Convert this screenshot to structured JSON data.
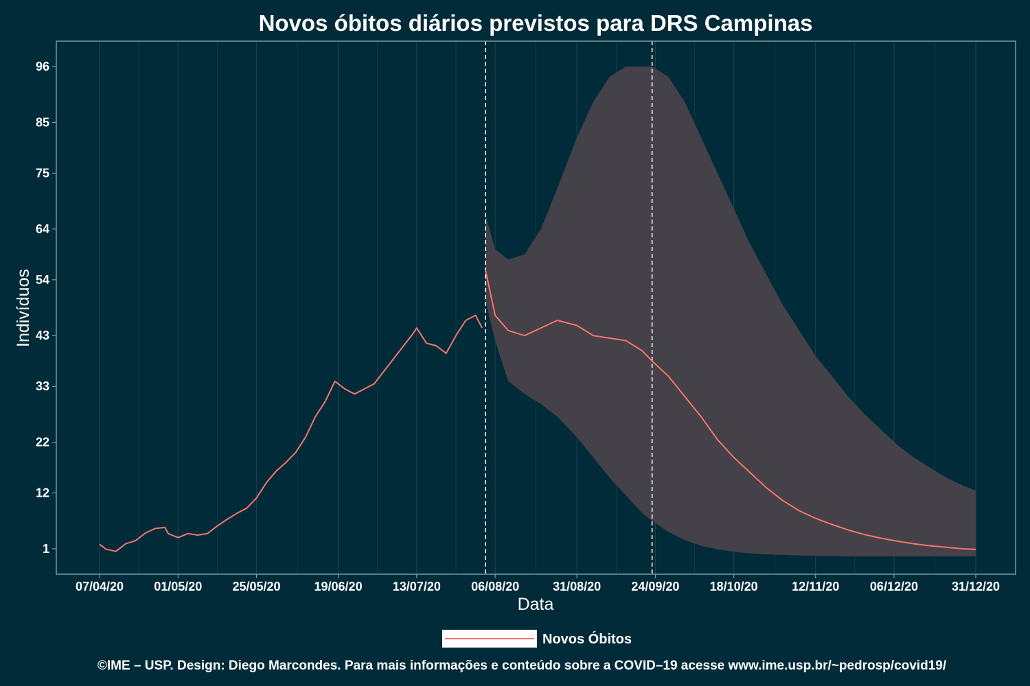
{
  "chart_data": {
    "type": "line",
    "title": "Novos óbitos diários previstos para DRS Campinas",
    "xlabel": "Data",
    "ylabel": "Indivíduos",
    "x_ticks": [
      "07/04/20",
      "01/05/20",
      "25/05/20",
      "19/06/20",
      "13/07/20",
      "06/08/20",
      "31/08/20",
      "24/09/20",
      "18/10/20",
      "12/11/20",
      "06/12/20",
      "31/12/20"
    ],
    "y_ticks": [
      1,
      12,
      22,
      33,
      43,
      54,
      64,
      75,
      85,
      96
    ],
    "ylim": [
      -4,
      101
    ],
    "grid": true,
    "legend_position": "bottom",
    "vlines": [
      "2020-08-03",
      "2020-09-23"
    ],
    "series": [
      {
        "name": "Novos Óbitos",
        "color": "#f8766d",
        "observed": {
          "x": [
            "2020-04-07",
            "2020-04-09",
            "2020-04-12",
            "2020-04-15",
            "2020-04-18",
            "2020-04-21",
            "2020-04-24",
            "2020-04-27",
            "2020-04-28",
            "2020-05-01",
            "2020-05-04",
            "2020-05-07",
            "2020-05-10",
            "2020-05-13",
            "2020-05-16",
            "2020-05-19",
            "2020-05-22",
            "2020-05-25",
            "2020-05-28",
            "2020-05-31",
            "2020-06-03",
            "2020-06-06",
            "2020-06-09",
            "2020-06-12",
            "2020-06-15",
            "2020-06-18",
            "2020-06-21",
            "2020-06-24",
            "2020-06-27",
            "2020-06-30",
            "2020-07-03",
            "2020-07-06",
            "2020-07-09",
            "2020-07-12",
            "2020-07-13",
            "2020-07-16",
            "2020-07-19",
            "2020-07-22",
            "2020-07-25",
            "2020-07-28",
            "2020-07-31",
            "2020-08-02"
          ],
          "y": [
            1.9,
            0.9,
            0.5,
            2.0,
            2.6,
            4.1,
            5.0,
            5.2,
            4.0,
            3.2,
            4.0,
            3.7,
            4.0,
            5.5,
            6.8,
            8.0,
            9.0,
            11.0,
            14.0,
            16.3,
            18.0,
            20.0,
            23.0,
            27.0,
            30.0,
            34.0,
            32.5,
            31.5,
            32.5,
            33.5,
            36.0,
            38.5,
            41.0,
            43.5,
            44.5,
            41.5,
            41.0,
            39.5,
            43.0,
            46.0,
            47.0,
            44.5
          ]
        },
        "forecast": {
          "x": [
            "2020-08-03",
            "2020-08-06",
            "2020-08-10",
            "2020-08-15",
            "2020-08-20",
            "2020-08-25",
            "2020-08-31",
            "2020-09-05",
            "2020-09-10",
            "2020-09-15",
            "2020-09-20",
            "2020-09-23",
            "2020-09-28",
            "2020-10-03",
            "2020-10-08",
            "2020-10-13",
            "2020-10-18",
            "2020-10-23",
            "2020-10-28",
            "2020-11-02",
            "2020-11-07",
            "2020-11-12",
            "2020-11-17",
            "2020-11-22",
            "2020-11-27",
            "2020-12-02",
            "2020-12-07",
            "2020-12-12",
            "2020-12-17",
            "2020-12-22",
            "2020-12-27",
            "2020-12-31"
          ],
          "y": [
            56,
            47,
            44,
            43,
            44.5,
            46,
            45,
            43,
            42.5,
            42,
            40,
            38,
            35,
            31,
            27,
            22.5,
            19,
            16,
            13,
            10.5,
            8.5,
            7,
            5.8,
            4.7,
            3.8,
            3.1,
            2.5,
            2.0,
            1.6,
            1.3,
            1.0,
            0.9
          ]
        },
        "interval": {
          "lower": [
            50,
            42,
            34,
            31.5,
            29.5,
            27,
            23,
            19,
            15,
            11.5,
            8,
            6.5,
            4.3,
            2.7,
            1.6,
            0.9,
            0.4,
            0.1,
            -0.1,
            -0.2,
            -0.3,
            -0.4,
            -0.4,
            -0.5,
            -0.5,
            -0.5,
            -0.5,
            -0.5,
            -0.5,
            -0.5,
            -0.5,
            -0.5
          ],
          "upper": [
            67,
            60,
            58,
            59,
            64,
            72,
            82,
            89,
            94,
            96,
            96,
            96,
            94,
            89,
            82,
            75,
            68,
            61,
            55,
            49,
            44,
            39,
            35,
            31,
            27.5,
            24.5,
            21.5,
            19,
            17,
            15,
            13.5,
            12.5
          ]
        }
      }
    ],
    "caption": "©IME – USP. Design: Diego Marcondes. Para mais informações e conteúdo sobre a COVID–19 acesse www.ime.usp.br/~pedrosp/covid19/"
  },
  "colors": {
    "background": "#012b39",
    "line": "#f8766d",
    "band": "#444149",
    "grid": "#1d3f4b",
    "frame": "#7b9ba3"
  }
}
